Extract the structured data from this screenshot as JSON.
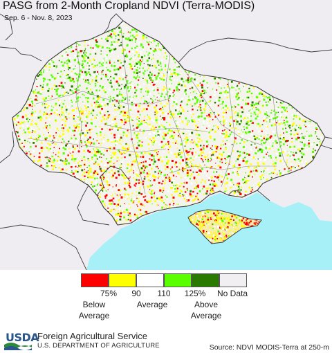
{
  "title": "PASG from 2-Month Cropland NDVI (Terra-MODIS)",
  "date_range": "Sep. 6 - Nov. 8, 2023",
  "legend": {
    "classes": [
      {
        "color": "#ff0000"
      },
      {
        "color": "#ffff00"
      },
      {
        "color": "#ffffff"
      },
      {
        "color": "#5aff00"
      },
      {
        "color": "#2a7a00"
      },
      {
        "color": "#f2eff2"
      }
    ],
    "ticks": [
      "75%",
      "90",
      "110",
      "125%"
    ],
    "no_data": "No Data",
    "below_line1": "Below",
    "below_line2": "Average",
    "average": "Average",
    "above_line1": "Above",
    "above_line2": "Average"
  },
  "colors": {
    "sea": "#a8f0f8",
    "land_background": "#efedf1",
    "border": "#3a3a3a"
  },
  "footer": {
    "logo_text": "USDA",
    "agency": "Foreign Agricultural Service",
    "department": "U.S. DEPARTMENT OF AGRICULTURE",
    "source": "Source: NDVI MODIS-Terra at 250-m"
  }
}
